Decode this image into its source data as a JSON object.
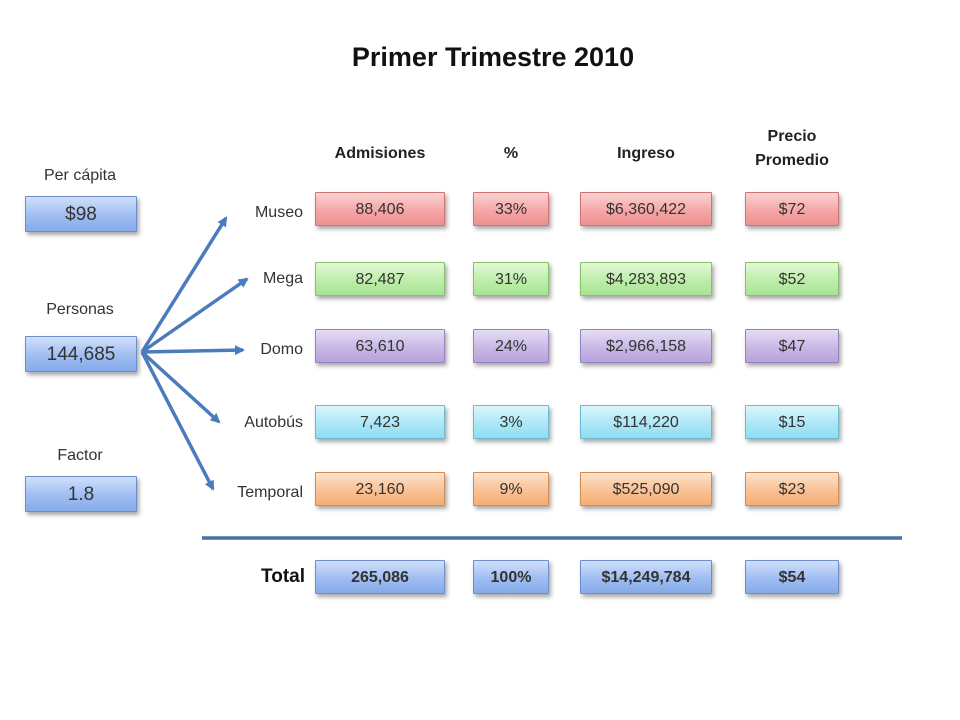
{
  "title": "Primer Trimestre 2010",
  "left_metrics": [
    {
      "label": "Per cápita",
      "value": "$98"
    },
    {
      "label": "Personas",
      "value": "144,685"
    },
    {
      "label": "Factor",
      "value": "1.8"
    }
  ],
  "columns": {
    "admisiones": "Admisiones",
    "percent": "%",
    "ingreso": "Ingreso",
    "precio_line1": "Precio",
    "precio_line2": "Promedio"
  },
  "rows": [
    {
      "name": "Museo",
      "color": "#f5a6a6",
      "admisiones": "88,406",
      "percent": "33%",
      "ingreso": "$6,360,422",
      "precio": "$72"
    },
    {
      "name": "Mega",
      "color": "#bdedaa",
      "admisiones": "82,487",
      "percent": "31%",
      "ingreso": "$4,283,893",
      "precio": "$52"
    },
    {
      "name": "Domo",
      "color": "#c8b8e6",
      "admisiones": "63,610",
      "percent": "24%",
      "ingreso": "$2,966,158",
      "precio": "$47"
    },
    {
      "name": "Autobús",
      "color": "#ace7f6",
      "admisiones": "7,423",
      "percent": "3%",
      "ingreso": "$114,220",
      "precio": "$15"
    },
    {
      "name": "Temporal",
      "color": "#f9c194",
      "admisiones": "23,160",
      "percent": "9%",
      "ingreso": "$525,090",
      "precio": "$23"
    }
  ],
  "total": {
    "label": "Total",
    "admisiones": "265,086",
    "percent": "100%",
    "ingreso": "$14,249,784",
    "precio": "$54"
  },
  "colors": {
    "arrow": "#4a7bbd",
    "divider": "#4a6fa5",
    "total_box": "#9fbdf2"
  }
}
